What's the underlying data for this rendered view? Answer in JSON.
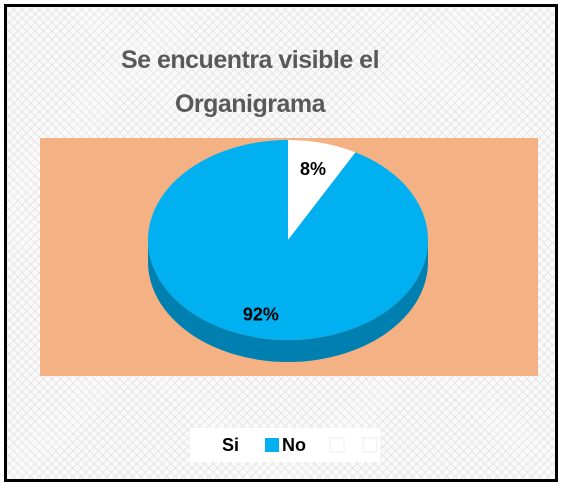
{
  "chart_data": {
    "type": "pie",
    "title": "Se encuentra visible el Organigrama",
    "categories": [
      "Si",
      "No"
    ],
    "values": [
      8,
      92
    ],
    "value_labels": [
      "8%",
      "92%"
    ],
    "colors": [
      "#ffffff",
      "#00b0f0"
    ],
    "legend": "bottom"
  }
}
